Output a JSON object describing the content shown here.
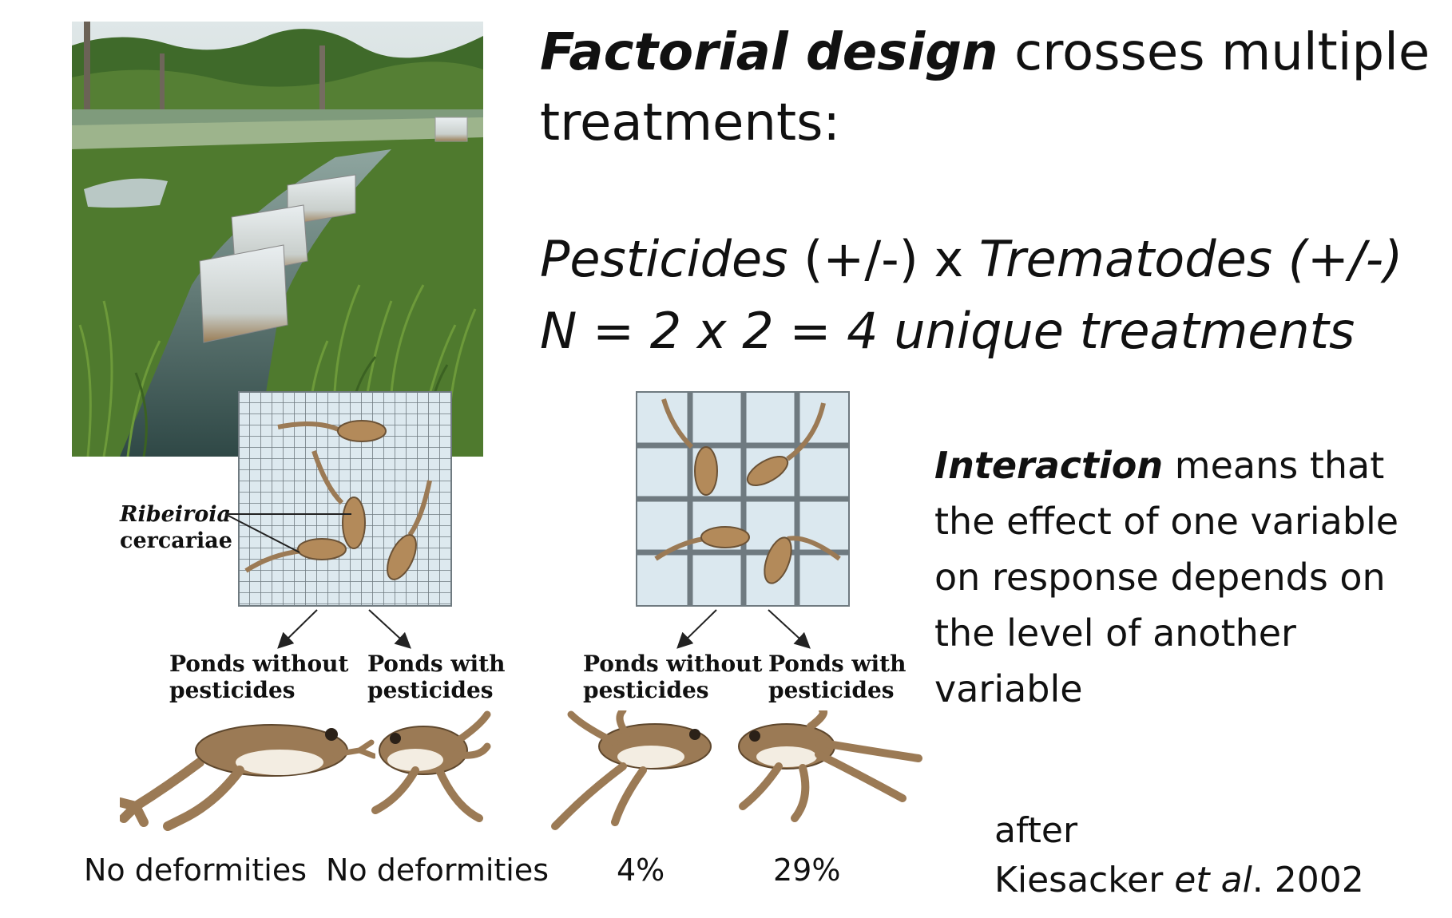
{
  "title": {
    "bold_part": "Factorial design",
    "rest": " crosses multiple treatments:"
  },
  "design": {
    "factor1": "Pesticides",
    "factor1_levels": " (+/-) x ",
    "factor2": "Trematodes (+/-)",
    "count_line": "N = 2 x 2 = 4 unique treatments"
  },
  "interaction": {
    "bold_part": "Interaction",
    "rest": " means that the effect of one variable on response depends on the level of another variable"
  },
  "figure": {
    "parasite_label_italic": "Ribeiroia",
    "parasite_label_rest": "cercariae",
    "left_group": {
      "pond_without": [
        "Ponds without",
        "pesticides"
      ],
      "pond_with": [
        "Ponds with",
        "pesticides"
      ],
      "outcome_without": "No deformities",
      "outcome_with": "No deformities"
    },
    "right_group": {
      "pond_without": [
        "Ponds without",
        "pesticides"
      ],
      "pond_with": [
        "Ponds with",
        "pesticides"
      ],
      "outcome_without": "4%",
      "outcome_with": "29%"
    }
  },
  "citation": {
    "line1": "after",
    "author": "Kiesacker ",
    "etal": "et al",
    "year": ". 2002"
  },
  "colors": {
    "tadpole": "#b38a5a",
    "frog_back": "#9b7a55",
    "frog_belly": "#f3ede2",
    "grid_bg": "#dce8ef",
    "grid_line": "#6f7a80",
    "water": "#3c5a58",
    "grass": "#4f7a2e"
  }
}
